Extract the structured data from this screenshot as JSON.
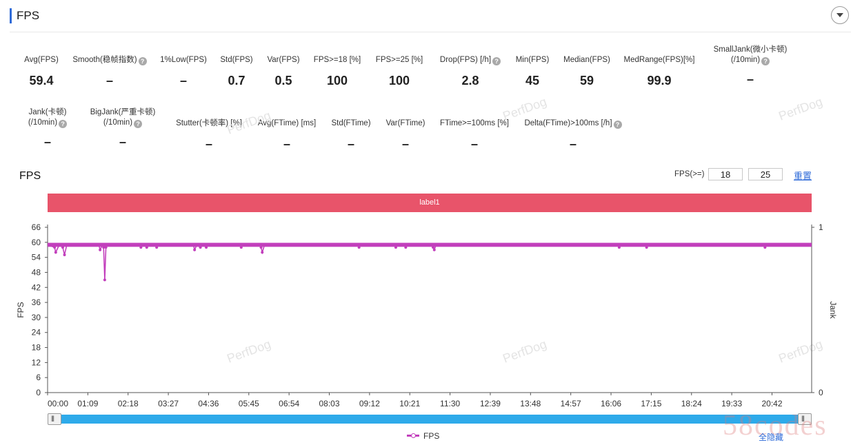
{
  "header": {
    "title": "FPS"
  },
  "metrics_row1": [
    {
      "label": "Avg(FPS)",
      "value": "59.4",
      "help": false
    },
    {
      "label": "Smooth(稳帧指数)",
      "value": "–",
      "help": true
    },
    {
      "label": "1%Low(FPS)",
      "value": "–",
      "help": false
    },
    {
      "label": "Std(FPS)",
      "value": "0.7",
      "help": false
    },
    {
      "label": "Var(FPS)",
      "value": "0.5",
      "help": false
    },
    {
      "label": "FPS>=18 [%]",
      "value": "100",
      "help": false
    },
    {
      "label": "FPS>=25 [%]",
      "value": "100",
      "help": false
    },
    {
      "label": "Drop(FPS) [/h]",
      "value": "2.8",
      "help": true
    },
    {
      "label": "Min(FPS)",
      "value": "45",
      "help": false
    },
    {
      "label": "Median(FPS)",
      "value": "59",
      "help": false
    },
    {
      "label": "MedRange(FPS)[%]",
      "value": "99.9",
      "help": false
    },
    {
      "label": "SmallJank(微小卡顿)",
      "label2": "(/10min)",
      "value": "–",
      "help": true
    }
  ],
  "metrics_row2": [
    {
      "label": "Jank(卡顿)",
      "label2": "(/10min)",
      "value": "–",
      "help": true
    },
    {
      "label": "BigJank(严重卡顿)",
      "label2": "(/10min)",
      "value": "–",
      "help": true
    },
    {
      "label": "Stutter(卡顿率) [%]",
      "value": "–",
      "help": false
    },
    {
      "label": "Avg(FTime) [ms]",
      "value": "–",
      "help": false
    },
    {
      "label": "Std(FTime)",
      "value": "–",
      "help": false
    },
    {
      "label": "Var(FTime)",
      "value": "–",
      "help": false
    },
    {
      "label": "FTime>=100ms [%]",
      "value": "–",
      "help": false
    },
    {
      "label": "Delta(FTime)>100ms [/h]",
      "value": "–",
      "help": true
    }
  ],
  "watermark": "PerfDog",
  "chart_controls": {
    "title": "FPS",
    "threshold_label": "FPS(>=)",
    "threshold_1": "18",
    "threshold_2": "25",
    "reset_label": "重置",
    "band_label": "label1"
  },
  "legend": {
    "series_name": "FPS",
    "hide_all_label": "全隐藏"
  },
  "brand_watermark": "58codes",
  "colors": {
    "series": "#c23fbc",
    "band": "#e8546a",
    "slider": "#2eaaea",
    "accent": "#2f6bd8"
  },
  "chart_data": {
    "type": "line",
    "ylabel": "FPS",
    "y2label": "Jank",
    "ylim": [
      0,
      66
    ],
    "yticks": [
      0,
      6,
      12,
      18,
      24,
      30,
      36,
      42,
      48,
      54,
      60,
      66
    ],
    "y2lim": [
      0,
      1
    ],
    "y2ticks": [
      0,
      1
    ],
    "x_ticks": [
      "00:00",
      "01:09",
      "02:18",
      "03:27",
      "04:36",
      "05:45",
      "06:54",
      "08:03",
      "09:12",
      "10:21",
      "11:30",
      "12:39",
      "13:48",
      "14:57",
      "16:06",
      "17:15",
      "18:24",
      "19:33",
      "20:42"
    ],
    "x_tick_seconds": [
      0,
      69,
      138,
      207,
      276,
      345,
      414,
      483,
      552,
      621,
      690,
      759,
      828,
      897,
      966,
      1035,
      1104,
      1173,
      1242
    ],
    "xlim_seconds": [
      0,
      1310
    ],
    "grid": false,
    "legend": "bottom",
    "series": [
      {
        "name": "FPS",
        "baseline": 59,
        "points": [
          [
            0,
            59
          ],
          [
            12,
            58
          ],
          [
            14,
            56
          ],
          [
            20,
            59
          ],
          [
            26,
            58
          ],
          [
            29,
            55
          ],
          [
            33,
            59
          ],
          [
            88,
            59
          ],
          [
            90,
            57
          ],
          [
            94,
            59
          ],
          [
            96,
            58
          ],
          [
            98,
            45
          ],
          [
            100,
            58
          ],
          [
            104,
            59
          ],
          [
            158,
            59
          ],
          [
            160,
            58
          ],
          [
            165,
            59
          ],
          [
            170,
            58
          ],
          [
            175,
            59
          ],
          [
            185,
            59
          ],
          [
            187,
            58
          ],
          [
            190,
            59
          ],
          [
            250,
            59
          ],
          [
            252,
            57
          ],
          [
            256,
            59
          ],
          [
            262,
            58
          ],
          [
            266,
            59
          ],
          [
            272,
            58
          ],
          [
            276,
            59
          ],
          [
            330,
            59
          ],
          [
            332,
            58
          ],
          [
            336,
            59
          ],
          [
            364,
            59
          ],
          [
            366,
            58
          ],
          [
            368,
            56
          ],
          [
            372,
            59
          ],
          [
            532,
            59
          ],
          [
            534,
            58
          ],
          [
            538,
            59
          ],
          [
            595,
            59
          ],
          [
            597,
            58
          ],
          [
            600,
            59
          ],
          [
            612,
            59
          ],
          [
            614,
            58
          ],
          [
            618,
            59
          ],
          [
            659,
            59
          ],
          [
            661,
            58
          ],
          [
            663,
            57
          ],
          [
            666,
            59
          ],
          [
            978,
            59
          ],
          [
            980,
            58
          ],
          [
            984,
            59
          ],
          [
            1025,
            59
          ],
          [
            1027,
            58
          ],
          [
            1031,
            59
          ],
          [
            1228,
            59
          ],
          [
            1230,
            58
          ],
          [
            1234,
            59
          ],
          [
            1310,
            59
          ]
        ]
      }
    ]
  }
}
